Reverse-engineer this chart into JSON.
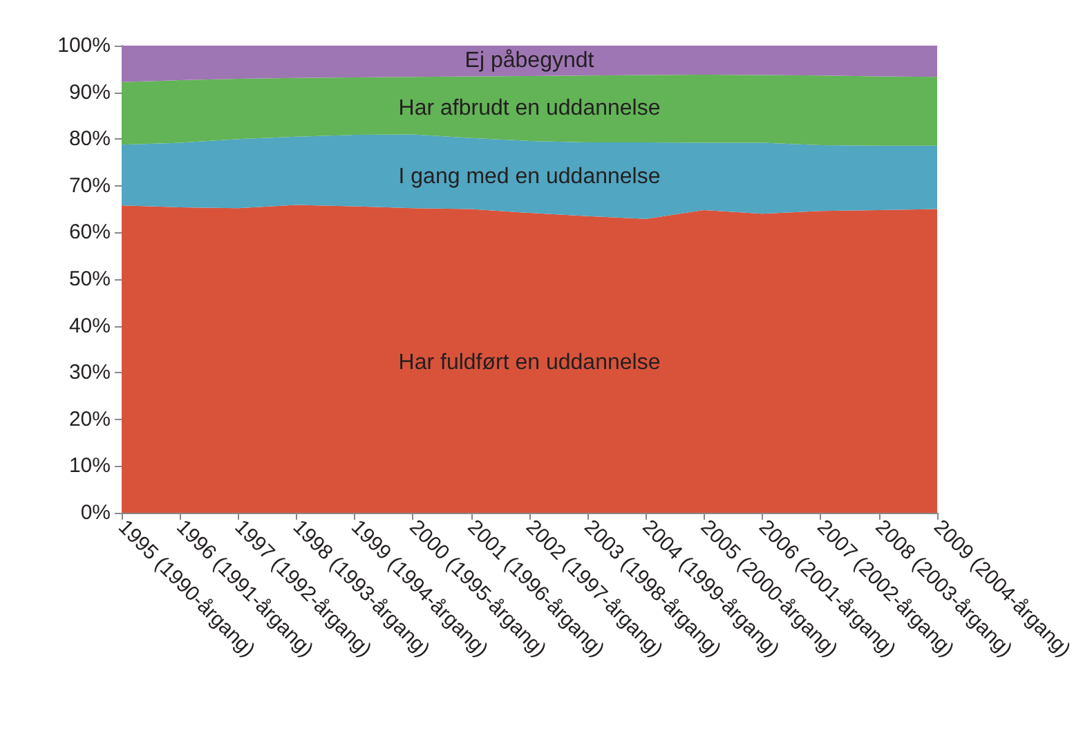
{
  "chart_data": {
    "type": "area",
    "stacked": true,
    "categories": [
      "1995 (1990-årgang)",
      "1996 (1991-årgang)",
      "1997 (1992-årgang)",
      "1998 (1993-årgang)",
      "1999 (1994-årgang)",
      "2000 (1995-årgang)",
      "2001 (1996-årgang)",
      "2002 (1997-årgang)",
      "2003 (1998-årgang)",
      "2004 (1999-årgang)",
      "2005 (2000-årgang)",
      "2006 (2001-årgang)",
      "2007 (2002-årgang)",
      "2008 (2003-årgang)",
      "2009 (2004-årgang)"
    ],
    "series": [
      {
        "name": "Har fuldført en uddannelse",
        "color": "#d9533b",
        "values": [
          65.8,
          65.4,
          65.2,
          65.9,
          65.6,
          65.2,
          65.0,
          64.2,
          63.5,
          62.9,
          64.8,
          64.0,
          64.6,
          64.8,
          65.0
        ]
      },
      {
        "name": "I gang med en uddannelse",
        "color": "#51a6c1",
        "values": [
          13.0,
          13.8,
          14.8,
          14.6,
          15.3,
          15.8,
          15.2,
          15.4,
          15.8,
          16.4,
          14.4,
          15.2,
          14.1,
          13.8,
          13.6
        ]
      },
      {
        "name": "Har afbrudt en uddannelse",
        "color": "#62b456",
        "values": [
          13.4,
          13.4,
          12.9,
          12.6,
          12.3,
          12.3,
          13.2,
          13.9,
          14.3,
          14.4,
          14.6,
          14.5,
          14.9,
          14.8,
          14.7
        ]
      },
      {
        "name": "Ej påbegyndt",
        "color": "#9e76b4",
        "values": [
          7.8,
          7.4,
          7.1,
          6.9,
          6.8,
          6.7,
          6.6,
          6.5,
          6.4,
          6.3,
          6.2,
          6.3,
          6.4,
          6.6,
          6.7
        ]
      }
    ],
    "ylim": [
      0,
      100
    ],
    "yticks": [
      {
        "value": 0,
        "label": "0%"
      },
      {
        "value": 10,
        "label": "10%"
      },
      {
        "value": 20,
        "label": "20%"
      },
      {
        "value": 30,
        "label": "30%"
      },
      {
        "value": 40,
        "label": "40%"
      },
      {
        "value": 50,
        "label": "50%"
      },
      {
        "value": 60,
        "label": "60%"
      },
      {
        "value": 70,
        "label": "70%"
      },
      {
        "value": 80,
        "label": "80%"
      },
      {
        "value": 90,
        "label": "90%"
      },
      {
        "value": 100,
        "label": "100%"
      }
    ],
    "grid": false,
    "legend": false
  }
}
